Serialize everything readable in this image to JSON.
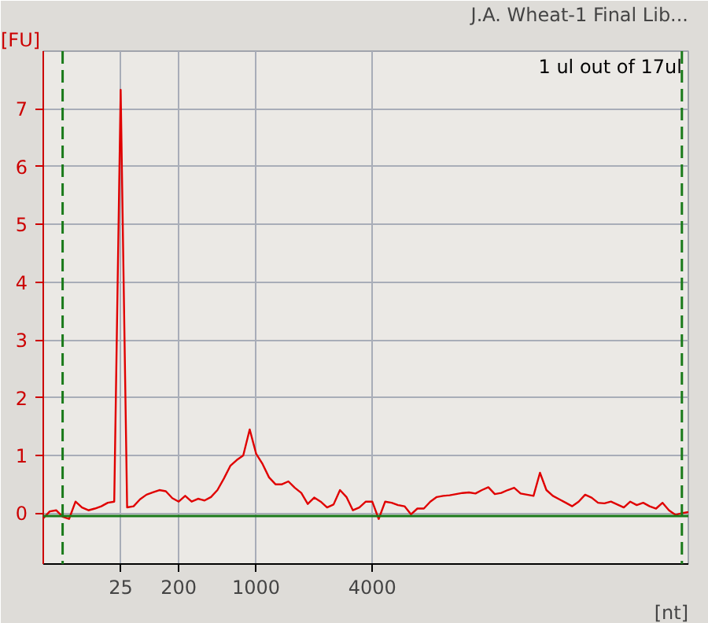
{
  "chart_data": {
    "type": "line",
    "title": "J.A. Wheat-1 Final Lib...",
    "subtitle": "1 ul out of 17ul",
    "ylabel": "[FU]",
    "xlabel": "[nt]",
    "categories": [
      null,
      null,
      null,
      null,
      null,
      null,
      null,
      null,
      null,
      null,
      null,
      null,
      "25",
      null,
      null,
      null,
      null,
      null,
      null,
      null,
      null,
      "200",
      null,
      null,
      null,
      null,
      null,
      null,
      null,
      null,
      null,
      null,
      null,
      "1000",
      null,
      null,
      null,
      null,
      null,
      null,
      null,
      null,
      null,
      null,
      null,
      null,
      null,
      null,
      null,
      null,
      null,
      "4000",
      null,
      null,
      null,
      null,
      null,
      null,
      null,
      null,
      null,
      null,
      null,
      null,
      null,
      null,
      null,
      null,
      null,
      null,
      null,
      null,
      null,
      null,
      null,
      null,
      null,
      null,
      null,
      null,
      null,
      null,
      null,
      null,
      null,
      null,
      null,
      null,
      null,
      null,
      null,
      null,
      null,
      null,
      null,
      null,
      null,
      null,
      null,
      null,
      null
    ],
    "ylim": [
      -0.88,
      8.0
    ],
    "yticks": [
      0,
      1,
      2,
      3,
      4,
      5,
      6,
      7
    ],
    "grid": true,
    "line_style": "solid",
    "marker": "none",
    "ref_lines": [
      {
        "axis": "y",
        "value": -0.05,
        "label": null,
        "color": "#1a7a1a",
        "line_style": "solid"
      }
    ],
    "series": [
      {
        "color": "#e00000",
        "values": [
          -0.09,
          0.03,
          0.05,
          -0.06,
          -0.1,
          0.2,
          0.1,
          0.05,
          0.08,
          0.12,
          0.18,
          0.2,
          7.33,
          0.1,
          0.12,
          0.24,
          0.32,
          0.36,
          0.4,
          0.38,
          0.26,
          0.2,
          0.3,
          0.2,
          0.25,
          0.22,
          0.28,
          0.4,
          0.6,
          0.82,
          0.92,
          1.0,
          1.45,
          1.03,
          0.85,
          0.62,
          0.5,
          0.5,
          0.55,
          0.44,
          0.35,
          0.16,
          0.27,
          0.2,
          0.1,
          0.15,
          0.4,
          0.28,
          0.05,
          0.1,
          0.2,
          0.2,
          -0.1,
          0.2,
          0.18,
          0.14,
          0.12,
          -0.02,
          0.08,
          0.08,
          0.2,
          0.28,
          0.3,
          0.31,
          0.33,
          0.35,
          0.36,
          0.34,
          0.4,
          0.45,
          0.33,
          0.35,
          0.4,
          0.44,
          0.34,
          0.32,
          0.3,
          0.7,
          0.4,
          0.3,
          0.24,
          0.18,
          0.12,
          0.2,
          0.32,
          0.27,
          0.18,
          0.17,
          0.2,
          0.15,
          0.1,
          0.2,
          0.14,
          0.18,
          0.12,
          0.08,
          0.18,
          0.05,
          -0.03,
          0.0,
          0.02
        ]
      }
    ]
  }
}
